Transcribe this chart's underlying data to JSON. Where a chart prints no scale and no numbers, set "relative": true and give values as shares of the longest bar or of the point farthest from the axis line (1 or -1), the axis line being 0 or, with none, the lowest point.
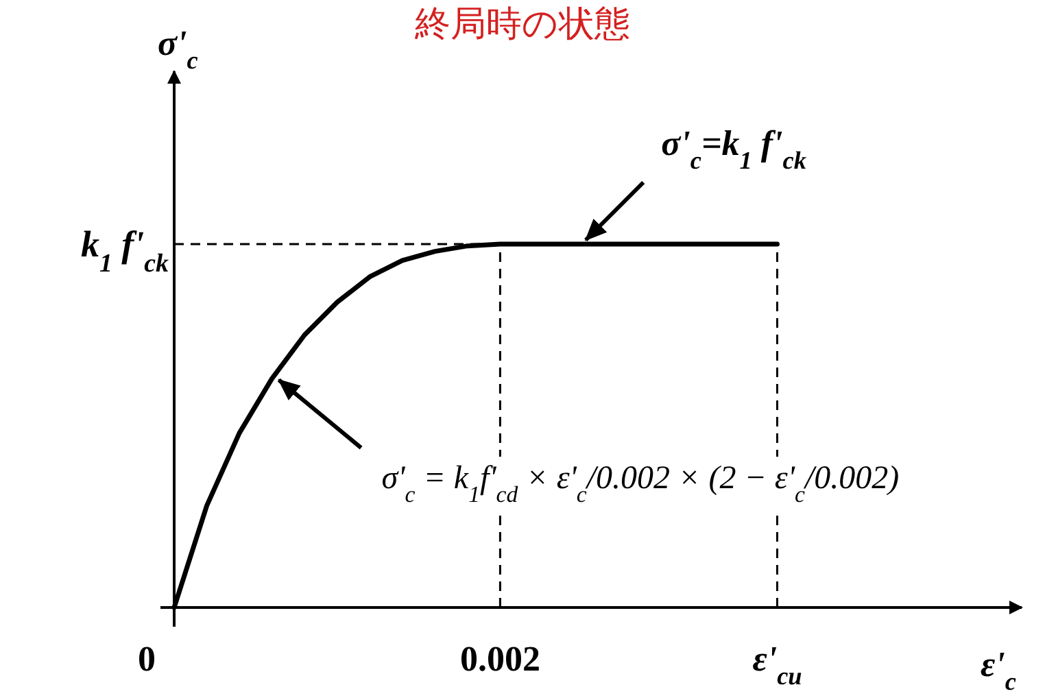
{
  "chart_data": {
    "type": "line",
    "title": "終局時の状態",
    "xlabel": "ε'$_{c}$",
    "ylabel": "σ'$_{c}$",
    "relative": true,
    "x": [
      0,
      0.0002,
      0.0004,
      0.0006,
      0.0008,
      0.001,
      0.0012,
      0.0014,
      0.0016,
      0.0018,
      0.002,
      0.0037
    ],
    "series": [
      {
        "color": "#000000",
        "values": [
          0,
          0.28,
          0.48,
          0.63,
          0.75,
          0.84,
          0.91,
          0.955,
          0.98,
          0.995,
          1,
          1
        ]
      }
    ],
    "xlim": [
      0,
      0.0052
    ],
    "xticks": [
      0,
      0.002,
      {
        "value": 0.0037,
        "label": "ε'$_{cu}$"
      }
    ],
    "ref_lines": [
      {
        "axis": "y",
        "value": 1,
        "label": "k$_{1}$ f'$_{ck}$",
        "line_style": "dashed"
      },
      {
        "axis": "x",
        "value": 0.002,
        "line_style": "dashed"
      },
      {
        "axis": "x",
        "value": 0.0037,
        "line_style": "dashed"
      }
    ],
    "annotations": [
      {
        "text": "σ'$_{c}$=k$_{1}$ f'$_{ck}$",
        "x": 0.0025,
        "y": 1
      },
      "σ'$_{c}$ = k$_{1}$f'$_{cd}$ × ε'$_{c}$/0.002 × (2 − ε'$_{c}$/0.002)"
    ],
    "line_style": "solid",
    "grid": false
  }
}
